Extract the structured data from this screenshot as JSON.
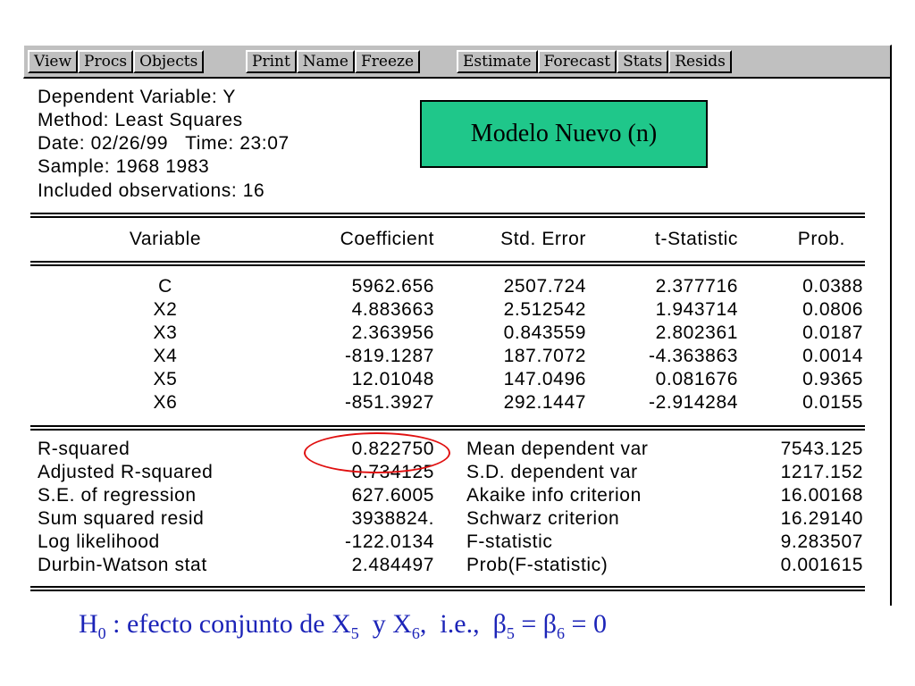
{
  "toolbar": {
    "group1": [
      "View",
      "Procs",
      "Objects"
    ],
    "group2": [
      "Print",
      "Name",
      "Freeze"
    ],
    "group3": [
      "Estimate",
      "Forecast",
      "Stats",
      "Resids"
    ]
  },
  "header": {
    "dependent": "Dependent Variable: Y",
    "method": "Method: Least Squares",
    "date": "Date: 02/26/99   Time: 23:07",
    "sample": "Sample: 1968 1983",
    "included": "Included observations: 16"
  },
  "model_label": "Modelo Nuevo (n)",
  "table": {
    "columns": [
      "Variable",
      "Coefficient",
      "Std. Error",
      "t-Statistic",
      "Prob."
    ],
    "rows": [
      {
        "variable": "C",
        "coefficient": "5962.656",
        "std_error": "2507.724",
        "t_stat": "2.377716",
        "prob": "0.0388"
      },
      {
        "variable": "X2",
        "coefficient": "4.883663",
        "std_error": "2.512542",
        "t_stat": "1.943714",
        "prob": "0.0806"
      },
      {
        "variable": "X3",
        "coefficient": "2.363956",
        "std_error": "0.843559",
        "t_stat": "2.802361",
        "prob": "0.0187"
      },
      {
        "variable": "X4",
        "coefficient": "-819.1287",
        "std_error": "187.7072",
        "t_stat": "-4.363863",
        "prob": "0.0014"
      },
      {
        "variable": "X5",
        "coefficient": "12.01048",
        "std_error": "147.0496",
        "t_stat": "0.081676",
        "prob": "0.9365"
      },
      {
        "variable": "X6",
        "coefficient": "-851.3927",
        "std_error": "292.1447",
        "t_stat": "-2.914284",
        "prob": "0.0155"
      }
    ]
  },
  "stats": [
    {
      "l_label": "R-squared",
      "l_value": "0.822750",
      "r_label": "Mean dependent var",
      "r_value": "7543.125"
    },
    {
      "l_label": "Adjusted R-squared",
      "l_value": "0.734125",
      "r_label": "S.D. dependent var",
      "r_value": "1217.152"
    },
    {
      "l_label": "S.E. of regression",
      "l_value": "627.6005",
      "r_label": "Akaike info criterion",
      "r_value": "16.00168"
    },
    {
      "l_label": "Sum squared resid",
      "l_value": "3938824.",
      "r_label": "Schwarz criterion",
      "r_value": "16.29140"
    },
    {
      "l_label": "Log likelihood",
      "l_value": "-122.0134",
      "r_label": "F-statistic",
      "r_value": "9.283507"
    },
    {
      "l_label": "Durbin-Watson stat",
      "l_value": "2.484497",
      "r_label": "Prob(F-statistic)",
      "r_value": "0.001615"
    }
  ],
  "hypothesis": {
    "h": "H",
    "h_sub": "0",
    "text1": " : efecto conjunto de X",
    "x5_sub": "5",
    "text2": "  y X",
    "x6_sub": "6",
    "text3": ",  i.e.,  β",
    "b5_sub": "5",
    "text4": " = β",
    "b6_sub": "6",
    "text5": " = 0"
  },
  "colors": {
    "model_box": "#1fc78a",
    "highlight_circle": "#e01010",
    "hypothesis_text": "#1c24b8"
  }
}
